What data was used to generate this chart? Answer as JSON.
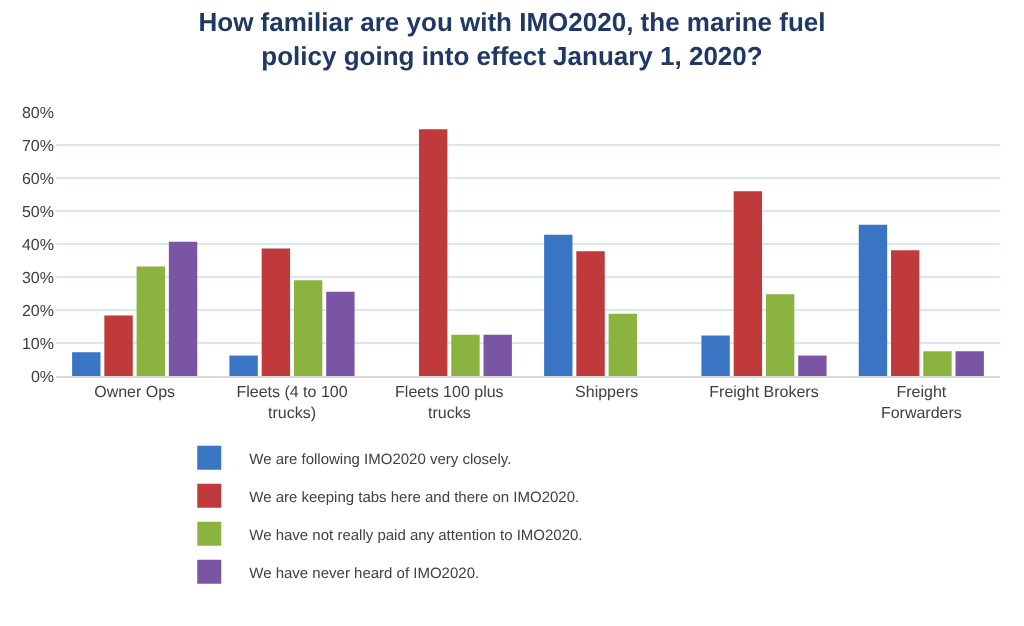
{
  "chart_data": {
    "type": "bar",
    "title": "How familiar are you with IMO2020, the marine fuel policy going into effect January 1, 2020?",
    "categories": [
      "Owner Ops",
      "Fleets (4 to 100 trucks)",
      "Fleets 100 plus trucks",
      "Shippers",
      "Freight Brokers",
      "Freight Forwarders"
    ],
    "series": [
      {
        "name": "We are following IMO2020 very closely.",
        "color": "#3a75c4",
        "values": [
          7.2,
          6.2,
          0,
          42.8,
          12.3,
          45.8
        ]
      },
      {
        "name": "We are keeping tabs here and there on IMO2020.",
        "color": "#c0393b",
        "values": [
          18.3,
          38.6,
          74.8,
          37.8,
          56,
          38.1
        ]
      },
      {
        "name": "We have not really paid any attention to IMO2020.",
        "color": "#8ab43f",
        "values": [
          33.2,
          29,
          12.5,
          18.9,
          24.8,
          7.5
        ]
      },
      {
        "name": "We have never heard of IMO2020.",
        "color": "#7a55a3",
        "values": [
          40.7,
          25.5,
          12.5,
          0,
          6.2,
          7.5
        ]
      }
    ],
    "ylim": [
      0,
      80
    ],
    "yticks": [
      {
        "value": 0,
        "label": "0%"
      },
      {
        "value": 10,
        "label": "10%"
      },
      {
        "value": 20,
        "label": "20%"
      },
      {
        "value": 30,
        "label": "30%"
      },
      {
        "value": 40,
        "label": "40%"
      },
      {
        "value": 50,
        "label": "50%"
      },
      {
        "value": 60,
        "label": "60%"
      },
      {
        "value": 70,
        "label": "70%"
      },
      {
        "value": 80,
        "label": "80%"
      }
    ],
    "grid": "y",
    "legend": "bottom"
  }
}
